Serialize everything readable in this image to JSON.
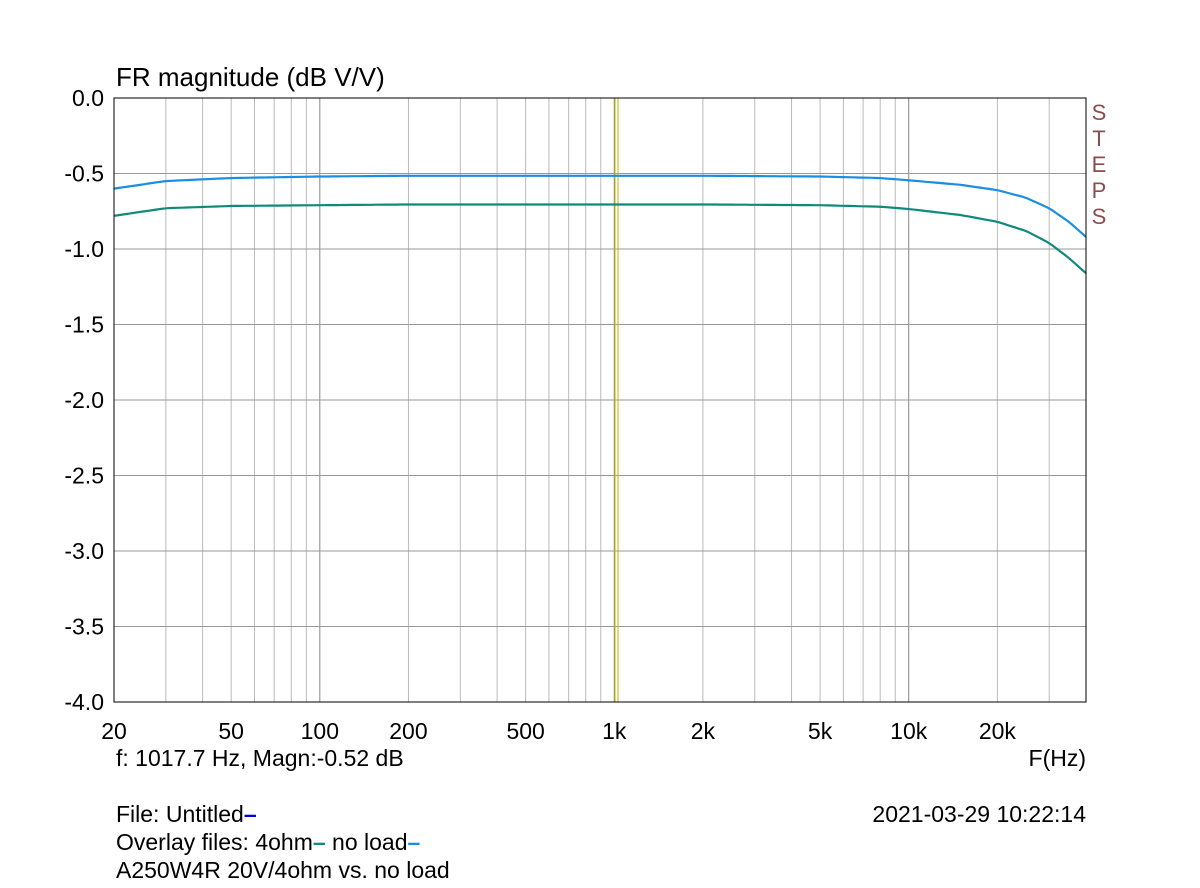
{
  "chart_data": {
    "type": "line",
    "title": "FR magnitude (dB V/V)",
    "xlabel": "F(Hz)",
    "ylabel": "",
    "x_scale": "log",
    "xlim": [
      20,
      40000
    ],
    "ylim": [
      -4.0,
      0.0
    ],
    "x_ticks": [
      20,
      50,
      100,
      200,
      500,
      1000,
      2000,
      5000,
      10000,
      20000
    ],
    "x_tick_labels": [
      "20",
      "50",
      "100",
      "200",
      "500",
      "1k",
      "2k",
      "5k",
      "10k",
      "20k"
    ],
    "y_ticks": [
      0,
      -0.5,
      -1,
      -1.5,
      -2,
      -2.5,
      -3,
      -3.5,
      -4
    ],
    "y_tick_labels": [
      "0.0",
      "-0.5",
      "-1.0",
      "-1.5",
      "-2.0",
      "-2.5",
      "-3.0",
      "-3.5",
      "-4.0"
    ],
    "grid": true,
    "cursor_frequency_hz": 1017.7,
    "series": [
      {
        "name": "no load",
        "color": "#1a8fe0",
        "x": [
          20,
          30,
          50,
          100,
          200,
          500,
          1000,
          2000,
          5000,
          8000,
          10000,
          15000,
          20000,
          25000,
          30000,
          35000,
          40000
        ],
        "y": [
          -0.6,
          -0.55,
          -0.53,
          -0.52,
          -0.515,
          -0.515,
          -0.515,
          -0.515,
          -0.52,
          -0.53,
          -0.545,
          -0.575,
          -0.61,
          -0.66,
          -0.73,
          -0.82,
          -0.92
        ]
      },
      {
        "name": "4ohm",
        "color": "#0f8a7a",
        "x": [
          20,
          30,
          50,
          100,
          200,
          500,
          1000,
          2000,
          5000,
          8000,
          10000,
          15000,
          20000,
          25000,
          30000,
          35000,
          40000
        ],
        "y": [
          -0.78,
          -0.73,
          -0.715,
          -0.71,
          -0.705,
          -0.705,
          -0.705,
          -0.705,
          -0.71,
          -0.72,
          -0.735,
          -0.775,
          -0.82,
          -0.88,
          -0.96,
          -1.06,
          -1.16
        ]
      }
    ]
  },
  "cursor_readout": "f: 1017.7 Hz, Magn:-0.52 dB",
  "file_line": "File: Untitled",
  "overlay_label": "Overlay files: 4ohm",
  "overlay_label2": " no load",
  "description": "A250W4R 20V/4ohm vs. no load",
  "timestamp": "2021-03-29 10:22:14",
  "steps_letters": [
    "S",
    "T",
    "E",
    "P",
    "S"
  ],
  "colors": {
    "grid": "#bbbbbb",
    "cursor": "#c8b400",
    "file_marker": "#0000cc",
    "steps": "#8b4d4d"
  }
}
